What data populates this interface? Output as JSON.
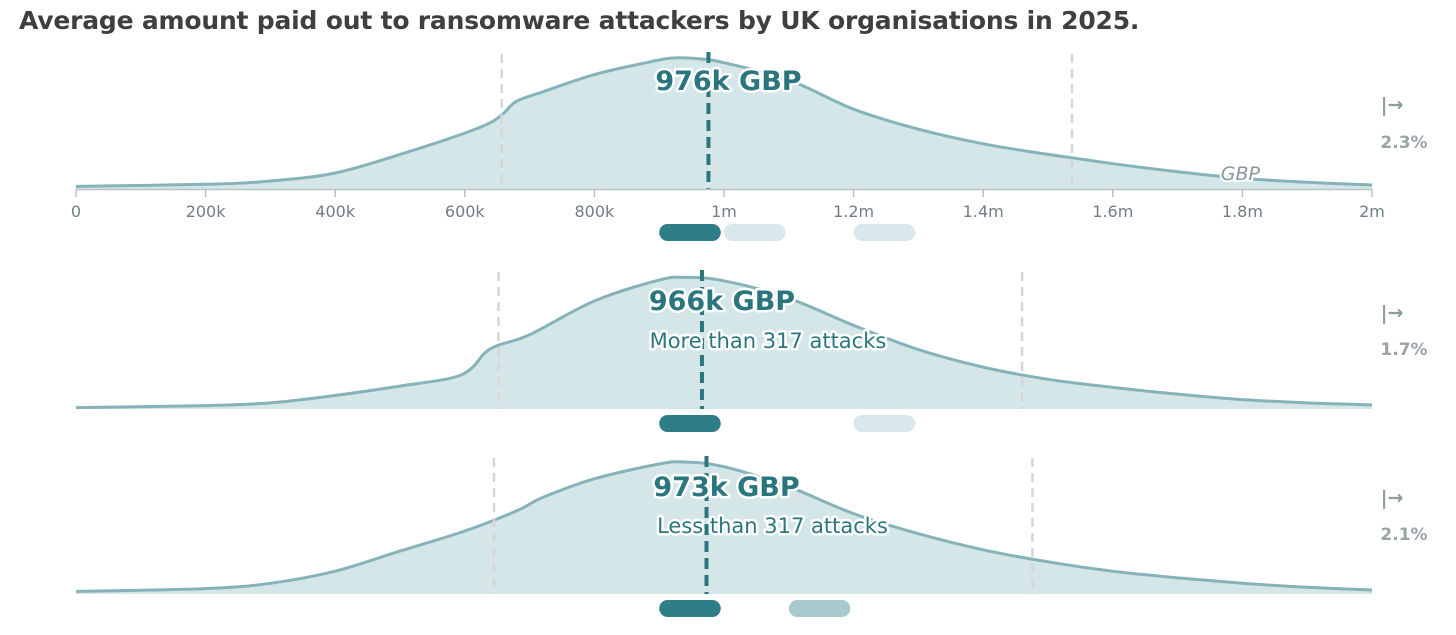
{
  "title": "Average amount paid out to ransomware attackers by UK organisations in 2025.",
  "colors": {
    "fill": "#d4e6e8",
    "curve": "#86b3b9",
    "median": "#2b767e",
    "bounds": "#d6d6d6",
    "pill_dark": "#2f7d86",
    "pill_mid": "#a8c9cd",
    "pill_light": "#d9e8ea"
  },
  "chart_data": {
    "type": "area",
    "x_axis": {
      "min": 0,
      "max": 2000000,
      "ticks": [
        0,
        200000,
        400000,
        600000,
        800000,
        1000000,
        1200000,
        1400000,
        1600000,
        1800000,
        2000000
      ],
      "tick_labels": [
        "0",
        "200k",
        "400k",
        "600k",
        "800k",
        "1m",
        "1.2m",
        "1.4m",
        "1.6m",
        "1.8m",
        "2m"
      ],
      "unit_label": "GBP"
    },
    "arrow_symbol": "|→",
    "series": [
      {
        "median": 976000,
        "median_label": "976k GBP",
        "sublabel": "",
        "bounds": [
          657000,
          1537000
        ],
        "beyond_range_pct": "2.3%",
        "density": [
          [
            0,
            0.02
          ],
          [
            200000,
            0.035
          ],
          [
            300000,
            0.06
          ],
          [
            400000,
            0.12
          ],
          [
            500000,
            0.26
          ],
          [
            600000,
            0.42
          ],
          [
            640000,
            0.5
          ],
          [
            660000,
            0.57
          ],
          [
            680000,
            0.66
          ],
          [
            720000,
            0.73
          ],
          [
            800000,
            0.86
          ],
          [
            880000,
            0.95
          ],
          [
            920000,
            0.985
          ],
          [
            960000,
            0.98
          ],
          [
            1000000,
            0.95
          ],
          [
            1100000,
            0.82
          ],
          [
            1200000,
            0.6
          ],
          [
            1300000,
            0.45
          ],
          [
            1400000,
            0.34
          ],
          [
            1500000,
            0.26
          ],
          [
            1600000,
            0.19
          ],
          [
            1700000,
            0.13
          ],
          [
            1800000,
            0.08
          ],
          [
            1900000,
            0.05
          ],
          [
            2000000,
            0.03
          ]
        ],
        "pills": [
          {
            "from": 900000,
            "to": 995000,
            "tone": "dark"
          },
          {
            "from": 1000000,
            "to": 1095000,
            "tone": "light"
          },
          {
            "from": 1200000,
            "to": 1295000,
            "tone": "light"
          }
        ]
      },
      {
        "median": 966000,
        "median_label": "966k GBP",
        "sublabel": "More than 317 attacks",
        "bounds": [
          652000,
          1460000
        ],
        "beyond_range_pct": "1.7%",
        "density": [
          [
            0,
            0.01
          ],
          [
            200000,
            0.025
          ],
          [
            300000,
            0.045
          ],
          [
            400000,
            0.1
          ],
          [
            500000,
            0.17
          ],
          [
            580000,
            0.23
          ],
          [
            610000,
            0.3
          ],
          [
            630000,
            0.41
          ],
          [
            650000,
            0.47
          ],
          [
            700000,
            0.55
          ],
          [
            800000,
            0.8
          ],
          [
            900000,
            0.955
          ],
          [
            940000,
            0.975
          ],
          [
            1000000,
            0.95
          ],
          [
            1100000,
            0.82
          ],
          [
            1200000,
            0.62
          ],
          [
            1300000,
            0.44
          ],
          [
            1400000,
            0.31
          ],
          [
            1500000,
            0.22
          ],
          [
            1600000,
            0.16
          ],
          [
            1700000,
            0.11
          ],
          [
            1800000,
            0.07
          ],
          [
            1900000,
            0.045
          ],
          [
            2000000,
            0.03
          ]
        ],
        "pills": [
          {
            "from": 900000,
            "to": 995000,
            "tone": "dark"
          },
          {
            "from": 1200000,
            "to": 1295000,
            "tone": "light"
          }
        ]
      },
      {
        "median": 973000,
        "median_label": "973k GBP",
        "sublabel": "Less than 317 attacks",
        "bounds": [
          645000,
          1476000
        ],
        "beyond_range_pct": "2.1%",
        "density": [
          [
            0,
            0.02
          ],
          [
            200000,
            0.04
          ],
          [
            300000,
            0.08
          ],
          [
            400000,
            0.17
          ],
          [
            500000,
            0.32
          ],
          [
            600000,
            0.47
          ],
          [
            680000,
            0.62
          ],
          [
            720000,
            0.72
          ],
          [
            800000,
            0.86
          ],
          [
            900000,
            0.97
          ],
          [
            940000,
            0.985
          ],
          [
            1000000,
            0.95
          ],
          [
            1100000,
            0.8
          ],
          [
            1200000,
            0.6
          ],
          [
            1300000,
            0.45
          ],
          [
            1400000,
            0.33
          ],
          [
            1500000,
            0.24
          ],
          [
            1600000,
            0.17
          ],
          [
            1700000,
            0.12
          ],
          [
            1800000,
            0.08
          ],
          [
            1900000,
            0.05
          ],
          [
            2000000,
            0.03
          ]
        ],
        "pills": [
          {
            "from": 900000,
            "to": 995000,
            "tone": "dark"
          },
          {
            "from": 1100000,
            "to": 1195000,
            "tone": "mid"
          }
        ]
      }
    ]
  }
}
